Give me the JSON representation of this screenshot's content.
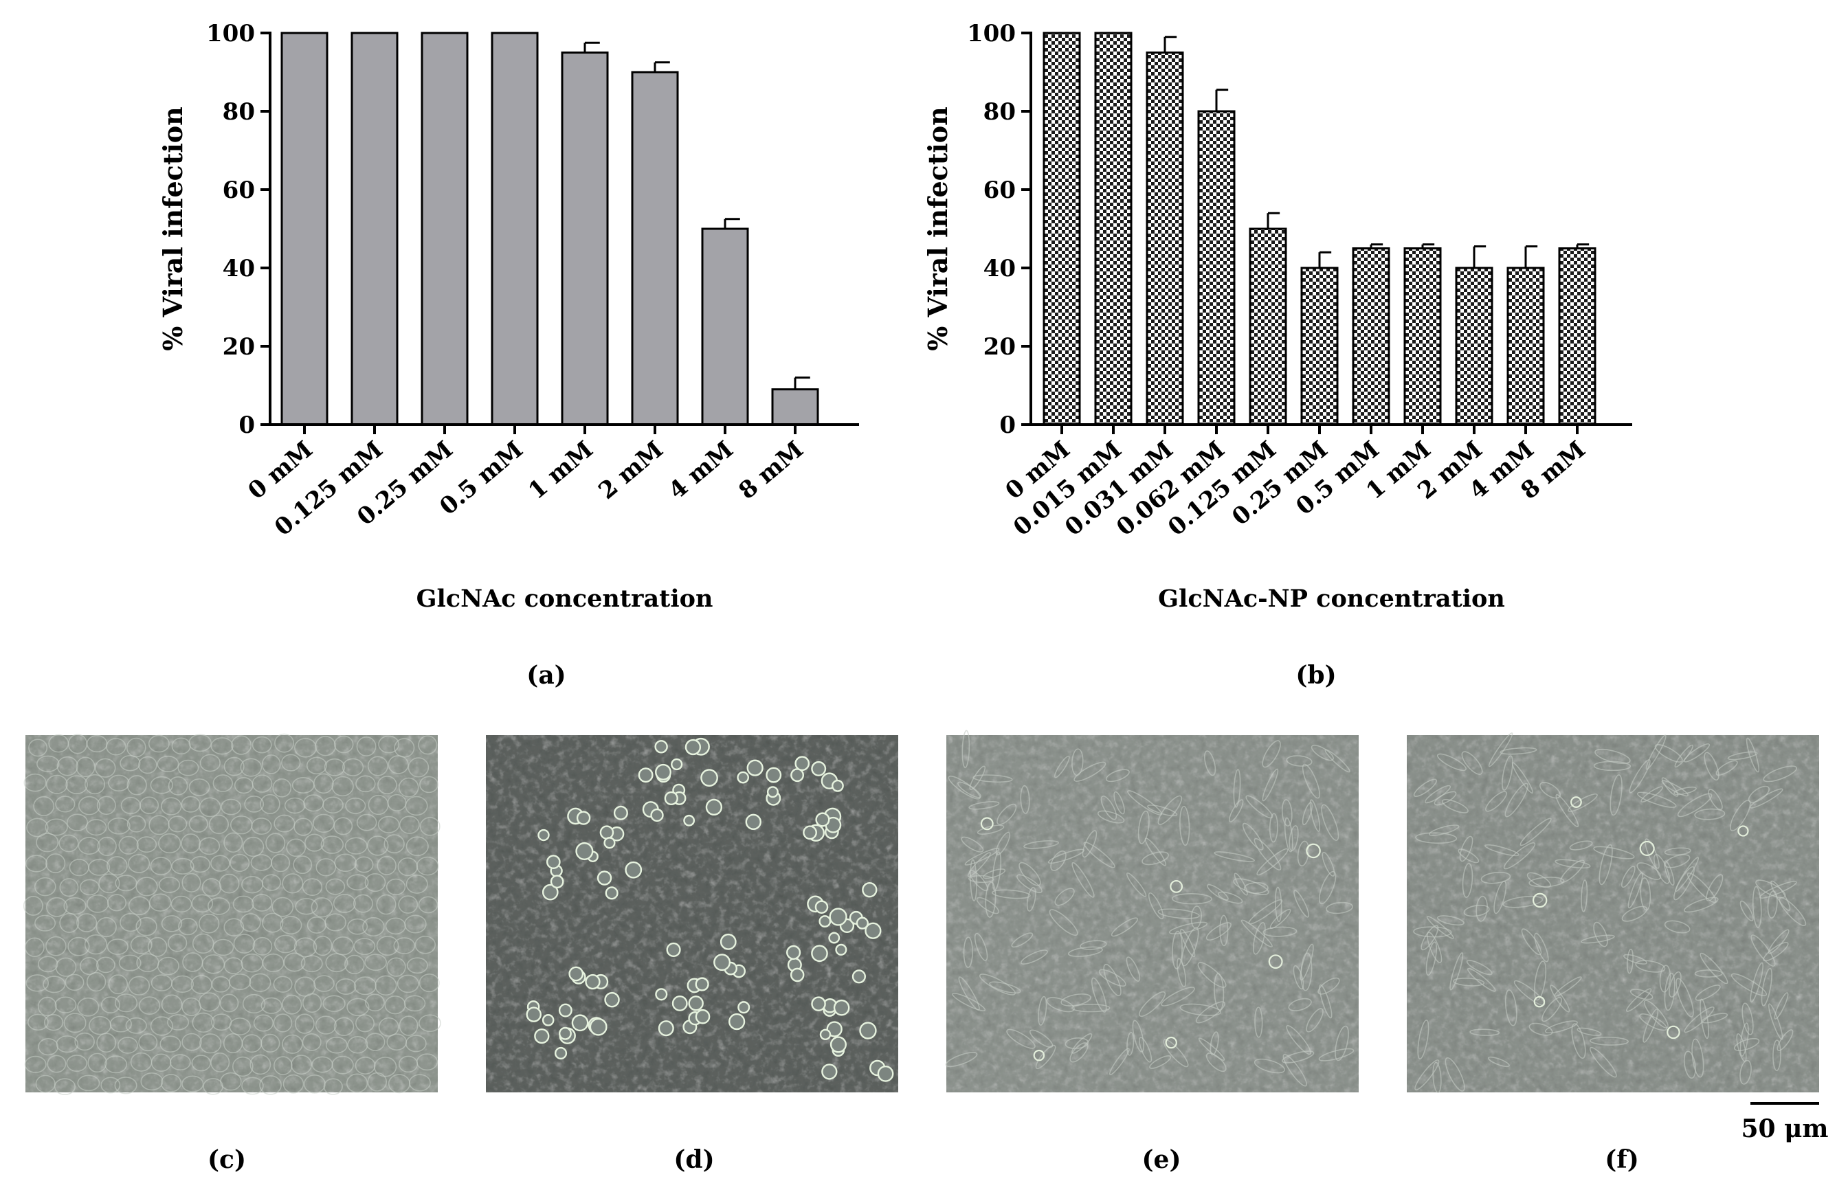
{
  "chart_data": [
    {
      "panel": "(a)",
      "type": "bar",
      "ylabel": "% Viral infection",
      "xlabel": "GlcNAc concentration",
      "ylim": [
        0,
        100
      ],
      "yticks": [
        "0",
        "20",
        "40",
        "60",
        "80",
        "100"
      ],
      "categories": [
        "0 mM",
        "0.125 mM",
        "0.25 mM",
        "0.5 mM",
        "1 mM",
        "2 mM",
        "4 mM",
        "8 mM"
      ],
      "values": [
        100,
        100,
        100,
        100,
        95,
        90,
        50,
        9
      ],
      "errors": [
        0,
        0,
        0,
        0,
        2.5,
        2.5,
        2.5,
        3
      ],
      "fill": "#a3a3a8",
      "pattern": "solid"
    },
    {
      "panel": "(b)",
      "type": "bar",
      "ylabel": "% Viral infection",
      "xlabel": "GlcNAc-NP concentration",
      "ylim": [
        0,
        100
      ],
      "yticks": [
        "0",
        "20",
        "40",
        "60",
        "80",
        "100"
      ],
      "categories": [
        "0 mM",
        "0.015 mM",
        "0.031 mM",
        "0.062 mM",
        "0.125 mM",
        "0.25 mM",
        "0.5 mM",
        "1 mM",
        "2 mM",
        "4 mM",
        "8 mM"
      ],
      "values": [
        100,
        100,
        95,
        80,
        50,
        40,
        45,
        45,
        40,
        40,
        45
      ],
      "errors": [
        0,
        0,
        4,
        5.5,
        4,
        4,
        1,
        1,
        5.5,
        5.5,
        1
      ],
      "fill": "#000000",
      "pattern": "checkerboard"
    }
  ],
  "micrographs": [
    {
      "label": "(c)",
      "description_icon": "confluent-cell-monolayer-micrograph",
      "tone": "#8f968f"
    },
    {
      "label": "(d)",
      "description_icon": "rounded-detached-cells-micrograph",
      "tone": "#5c615e"
    },
    {
      "label": "(e)",
      "description_icon": "partially-detached-cells-micrograph",
      "tone": "#8c928d"
    },
    {
      "label": "(f)",
      "description_icon": "partially-detached-cells-micrograph",
      "tone": "#8a908b"
    }
  ],
  "scale_bar": {
    "label": "50 μm"
  }
}
